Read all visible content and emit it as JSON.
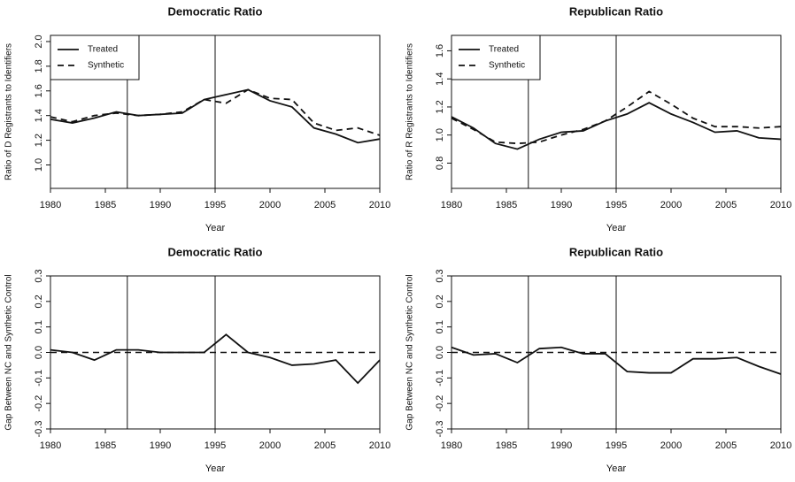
{
  "chart_data": [
    {
      "type": "line",
      "title": "Democratic Ratio",
      "x_label": "Year",
      "y_label": "Ratio of D Registrants to Identifiers",
      "x": [
        1980,
        1982,
        1984,
        1986,
        1988,
        1990,
        1992,
        1994,
        1996,
        1998,
        2000,
        2002,
        2004,
        2006,
        2008,
        2010
      ],
      "series": [
        {
          "name": "Treated",
          "color": "#111111",
          "line_style": "solid",
          "values": [
            1.37,
            1.34,
            1.38,
            1.43,
            1.4,
            1.41,
            1.42,
            1.53,
            1.57,
            1.61,
            1.52,
            1.47,
            1.3,
            1.25,
            1.18,
            1.21
          ]
        },
        {
          "name": "Synthetic",
          "color": "#111111",
          "line_style": "dashed",
          "values": [
            1.39,
            1.35,
            1.4,
            1.42,
            1.4,
            1.41,
            1.43,
            1.53,
            1.5,
            1.61,
            1.54,
            1.53,
            1.34,
            1.28,
            1.3,
            1.24
          ]
        }
      ],
      "xlim": [
        1980,
        2010
      ],
      "xticks": [
        1980,
        1985,
        1990,
        1995,
        2000,
        2005,
        2010
      ],
      "ylim": [
        0.81,
        2.05
      ],
      "yticks": [
        {
          "value": 1,
          "label": "1.0"
        },
        1.2,
        1.4,
        1.6,
        1.8,
        {
          "value": 2,
          "label": "2.0"
        }
      ],
      "vlines": [
        1987,
        1995
      ],
      "legend": "top-left"
    },
    {
      "type": "line",
      "title": "Republican Ratio",
      "x_label": "Year",
      "y_label": "Ratio of R Registrants to Identifiers",
      "x": [
        1980,
        1982,
        1984,
        1986,
        1988,
        1990,
        1992,
        1994,
        1996,
        1998,
        2000,
        2002,
        2004,
        2006,
        2008,
        2010
      ],
      "series": [
        {
          "name": "Treated",
          "color": "#111111",
          "line_style": "solid",
          "values": [
            1.13,
            1.05,
            0.94,
            0.9,
            0.97,
            1.02,
            1.03,
            1.1,
            1.15,
            1.23,
            1.15,
            1.09,
            1.02,
            1.03,
            0.98,
            0.97
          ]
        },
        {
          "name": "Synthetic",
          "color": "#111111",
          "line_style": "dashed",
          "values": [
            1.12,
            1.04,
            0.95,
            0.94,
            0.95,
            1.0,
            1.04,
            1.1,
            1.2,
            1.31,
            1.22,
            1.12,
            1.06,
            1.06,
            1.05,
            1.06
          ]
        }
      ],
      "xlim": [
        1980,
        2010
      ],
      "xticks": [
        1980,
        1985,
        1990,
        1995,
        2000,
        2005,
        2010
      ],
      "ylim": [
        0.62,
        1.71
      ],
      "yticks": [
        0.8,
        {
          "value": 1,
          "label": "1.0"
        },
        1.2,
        1.4,
        1.6
      ],
      "vlines": [
        1987,
        1995
      ],
      "legend": "top-left"
    },
    {
      "type": "line",
      "title": "Democratic Ratio",
      "x_label": "Year",
      "y_label": "Gap Between NC and Synthetic Control",
      "x": [
        1980,
        1982,
        1984,
        1986,
        1988,
        1990,
        1992,
        1994,
        1996,
        1998,
        2000,
        2002,
        2004,
        2006,
        2008,
        2010
      ],
      "series": [
        {
          "color": "#111111",
          "line_style": "solid",
          "values": [
            0.01,
            0.0,
            -0.03,
            0.01,
            0.01,
            0.0,
            0.0,
            0.0,
            0.07,
            0.0,
            -0.02,
            -0.05,
            -0.045,
            -0.03,
            -0.12,
            -0.03
          ]
        }
      ],
      "xlim": [
        1980,
        2010
      ],
      "xticks": [
        1980,
        1985,
        1990,
        1995,
        2000,
        2005,
        2010
      ],
      "ylim": [
        -0.3,
        0.3
      ],
      "yticks": [
        -0.3,
        -0.2,
        -0.1,
        {
          "value": 0,
          "label": "0.0"
        },
        0.1,
        0.2,
        0.3
      ],
      "vlines": [
        1987,
        1995
      ],
      "hline": 0
    },
    {
      "type": "line",
      "title": "Republican Ratio",
      "x_label": "Year",
      "y_label": "Gap Between NC and Synthetic Control",
      "x": [
        1980,
        1982,
        1984,
        1986,
        1988,
        1990,
        1992,
        1994,
        1996,
        1998,
        2000,
        2002,
        2004,
        2006,
        2008,
        2010
      ],
      "series": [
        {
          "color": "#111111",
          "line_style": "solid",
          "values": [
            0.02,
            -0.01,
            -0.005,
            -0.04,
            0.015,
            0.02,
            -0.005,
            -0.005,
            -0.075,
            -0.08,
            -0.08,
            -0.025,
            -0.025,
            -0.02,
            -0.055,
            -0.085
          ]
        }
      ],
      "xlim": [
        1980,
        2010
      ],
      "xticks": [
        1980,
        1985,
        1990,
        1995,
        2000,
        2005,
        2010
      ],
      "ylim": [
        -0.3,
        0.3
      ],
      "yticks": [
        -0.3,
        -0.2,
        -0.1,
        {
          "value": 0,
          "label": "0.0"
        },
        0.1,
        0.2,
        0.3
      ],
      "vlines": [
        1987,
        1995
      ],
      "hline": 0
    }
  ]
}
